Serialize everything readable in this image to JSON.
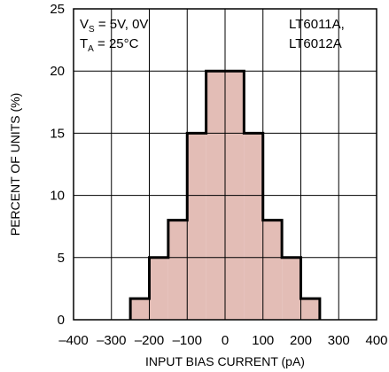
{
  "chart_data": {
    "type": "bar",
    "xlabel": "INPUT BIAS CURRENT (pA)",
    "ylabel": "PERCENT OF UNITS (%)",
    "xlim": [
      -400,
      400
    ],
    "ylim": [
      0,
      25
    ],
    "xticks": [
      -400,
      -300,
      -200,
      -100,
      0,
      100,
      200,
      300,
      400
    ],
    "xtick_labels": [
      "–400",
      "–300",
      "–200",
      "–100",
      "0",
      "100",
      "200",
      "300",
      "400"
    ],
    "yticks": [
      0,
      5,
      10,
      15,
      20,
      25
    ],
    "ytick_labels": [
      "0",
      "5",
      "10",
      "15",
      "20",
      "25"
    ],
    "grid": true,
    "bin_width": 50,
    "bins": [
      {
        "x0": -250,
        "x1": -200,
        "value": 1.7
      },
      {
        "x0": -200,
        "x1": -150,
        "value": 5
      },
      {
        "x0": -150,
        "x1": -100,
        "value": 8
      },
      {
        "x0": -100,
        "x1": -50,
        "value": 15
      },
      {
        "x0": -50,
        "x1": 0,
        "value": 20
      },
      {
        "x0": 0,
        "x1": 50,
        "value": 20
      },
      {
        "x0": 50,
        "x1": 100,
        "value": 15
      },
      {
        "x0": 100,
        "x1": 150,
        "value": 8
      },
      {
        "x0": 150,
        "x1": 200,
        "value": 5
      },
      {
        "x0": 200,
        "x1": 250,
        "value": 1.7
      }
    ],
    "bar_fill": "#e3bdb6",
    "annotations": {
      "left": {
        "line1": {
          "main": "V",
          "sub": "S",
          "rest": " = 5V, 0V"
        },
        "line2": {
          "main": "T",
          "sub": "A",
          "rest": " = 25°C"
        }
      },
      "right": [
        "LT6011A,",
        "LT6012A"
      ]
    }
  }
}
